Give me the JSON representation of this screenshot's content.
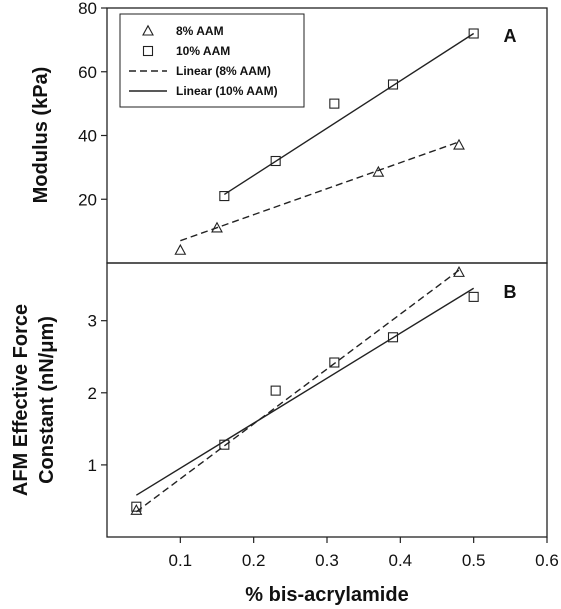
{
  "chart_data": [
    {
      "type": "scatter",
      "panel": "A",
      "ylabel": "Modulus (kPa)",
      "xlim": [
        0,
        0.6
      ],
      "ylim": [
        0,
        80
      ],
      "yticks": [
        20,
        40,
        60,
        80
      ],
      "legend_placement": "top-left",
      "series": [
        {
          "name": "8% AAM",
          "marker": "triangle",
          "points": [
            [
              0.1,
              4
            ],
            [
              0.15,
              11
            ],
            [
              0.37,
              28.5
            ],
            [
              0.48,
              37
            ]
          ]
        },
        {
          "name": "10% AAM",
          "marker": "square",
          "points": [
            [
              0.16,
              21
            ],
            [
              0.23,
              32
            ],
            [
              0.31,
              50
            ],
            [
              0.39,
              56
            ],
            [
              0.5,
              72
            ]
          ]
        }
      ],
      "fits": [
        {
          "name": "Linear (8% AAM)",
          "style": "dashed",
          "from": [
            0.1,
            7
          ],
          "to": [
            0.48,
            38
          ]
        },
        {
          "name": "Linear (10% AAM)",
          "style": "solid",
          "from": [
            0.16,
            21.5
          ],
          "to": [
            0.5,
            72
          ]
        }
      ]
    },
    {
      "type": "scatter",
      "panel": "B",
      "ylabel_lines": [
        "AFM Effective Force",
        "Constant (nN/μm)"
      ],
      "xlabel": "% bis-acrylamide",
      "xlim": [
        0,
        0.6
      ],
      "ylim": [
        0,
        3.8
      ],
      "yticks": [
        1,
        2,
        3
      ],
      "xticks": [
        0.1,
        0.2,
        0.3,
        0.4,
        0.5,
        0.6
      ],
      "series": [
        {
          "name": "8% AAM",
          "marker": "triangle",
          "points": [
            [
              0.04,
              0.37
            ],
            [
              0.48,
              3.67
            ]
          ]
        },
        {
          "name": "10% AAM",
          "marker": "square",
          "points": [
            [
              0.04,
              0.42
            ],
            [
              0.16,
              1.28
            ],
            [
              0.23,
              2.03
            ],
            [
              0.31,
              2.42
            ],
            [
              0.39,
              2.77
            ],
            [
              0.5,
              3.33
            ]
          ]
        }
      ],
      "fits": [
        {
          "name": "Linear (8% AAM)",
          "style": "dashed",
          "from": [
            0.04,
            0.35
          ],
          "to": [
            0.48,
            3.7
          ]
        },
        {
          "name": "Linear (10% AAM)",
          "style": "solid",
          "from": [
            0.04,
            0.58
          ],
          "to": [
            0.5,
            3.45
          ]
        }
      ]
    }
  ]
}
